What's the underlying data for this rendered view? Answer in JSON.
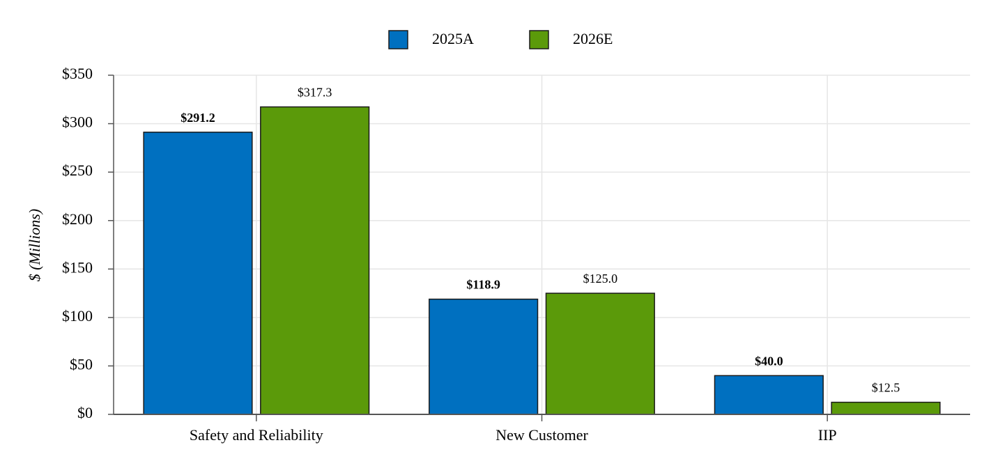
{
  "chart_data": {
    "type": "bar",
    "y_label": "$ (Millions)",
    "categories": [
      "Safety and Reliability",
      "New Customer",
      "IIP"
    ],
    "series": [
      {
        "name": "2025A",
        "color": "#0070c0",
        "label_weight": "bold",
        "values": [
          291.2,
          118.9,
          40.0
        ],
        "value_labels": [
          "$291.2",
          "$118.9",
          "$40.0"
        ]
      },
      {
        "name": "2026E",
        "color": "#5b9a0a",
        "label_weight": "normal",
        "values": [
          317.3,
          125.0,
          12.5
        ],
        "value_labels": [
          "$317.3",
          "$125.0",
          "$12.5"
        ]
      }
    ],
    "ylim": [
      0,
      350
    ],
    "yticks": [
      {
        "value": 0,
        "label": "$0"
      },
      {
        "value": 50,
        "label": "$50"
      },
      {
        "value": 100,
        "label": "$100"
      },
      {
        "value": 150,
        "label": "$150"
      },
      {
        "value": 200,
        "label": "$200"
      },
      {
        "value": 250,
        "label": "$250"
      },
      {
        "value": 300,
        "label": "$300"
      },
      {
        "value": 350,
        "label": "$350"
      }
    ],
    "grid": true,
    "legend_position": "top"
  }
}
